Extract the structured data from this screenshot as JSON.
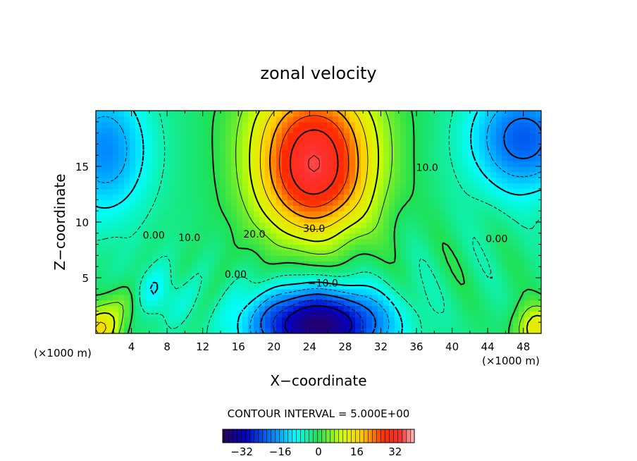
{
  "chart_data": {
    "type": "heatmap",
    "title": "zonal velocity",
    "xlabel": "X−coordinate",
    "ylabel": "Z−coordinate",
    "x_unit_left": "(×1000 m)",
    "x_unit_right": "(×1000 m)",
    "xlim": [
      0,
      50
    ],
    "ylim": [
      0,
      20
    ],
    "x_ticks": [
      4,
      8,
      12,
      16,
      20,
      24,
      28,
      32,
      36,
      40,
      44,
      48
    ],
    "y_ticks": [
      5,
      10,
      15
    ],
    "contour_interval_text": "CONTOUR INTERVAL = 5.000E+00",
    "contour_labels": [
      {
        "text": "30.0",
        "x": 24.5,
        "y": 9.1
      },
      {
        "text": "20.0",
        "x": 17.8,
        "y": 8.6
      },
      {
        "text": "10.0",
        "x": 10.5,
        "y": 8.3
      },
      {
        "text": "10.0",
        "x": 37.2,
        "y": 14.6
      },
      {
        "text": "0.00",
        "x": 6.5,
        "y": 8.5
      },
      {
        "text": "0.00",
        "x": 15.7,
        "y": 5.0
      },
      {
        "text": "0.00",
        "x": 45.0,
        "y": 8.2
      },
      {
        "text": "−10.0",
        "x": 25.5,
        "y": 4.2
      }
    ],
    "colorbar": {
      "min": -40,
      "max": 40,
      "ticks": [
        -32,
        -16,
        0,
        16,
        32
      ]
    },
    "colors": {
      "min": "#1a0050",
      "max": "#ffc8c8"
    }
  }
}
